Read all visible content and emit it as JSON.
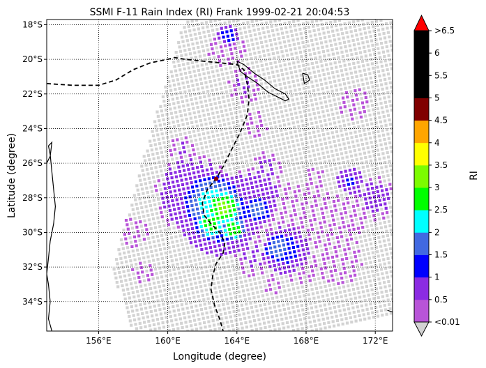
{
  "chart_data": {
    "type": "heatmap",
    "title": "SSMI F-11 Rain Index (RI) Frank 1999-02-21 20:04:53",
    "xlabel": "Longitude (degree)",
    "ylabel": "Latitude (degree)",
    "xlim": [
      153.0,
      173.0
    ],
    "ylim": [
      -35.7,
      -17.7
    ],
    "x_ticks": [
      156,
      160,
      164,
      168,
      172
    ],
    "x_tick_labels": [
      "156°E",
      "160°E",
      "164°E",
      "168°E",
      "172°E"
    ],
    "y_ticks": [
      -18,
      -20,
      -22,
      -24,
      -26,
      -28,
      -30,
      -32,
      -34
    ],
    "y_tick_labels": [
      "18°S",
      "20°S",
      "22°S",
      "24°S",
      "26°S",
      "28°S",
      "30°S",
      "32°S",
      "34°S"
    ],
    "grid": "dotted",
    "colorbar": {
      "label": "RI",
      "tick_labels": [
        "<0.01",
        "0.5",
        "1",
        "1.5",
        "2",
        "2.5",
        "3",
        "3.5",
        "4",
        "4.5",
        "5",
        "5.5",
        "6",
        ">6.5"
      ],
      "colors": [
        "#b854d8",
        "#8b2be2",
        "#0000ff",
        "#4169e1",
        "#00ffff",
        "#00ff00",
        "#7cfc00",
        "#ffff00",
        "#ffa500",
        "#800000",
        "#000000",
        "#000000",
        "#000000"
      ],
      "under_color": "#d3d3d3",
      "over_color": "#ff0000"
    },
    "rain_cells": [
      {
        "lon": 163.2,
        "lat": -28.6,
        "ri": 3.2,
        "r": 1.1
      },
      {
        "lon": 162.5,
        "lat": -29.5,
        "ri": 2.8,
        "r": 0.9
      },
      {
        "lon": 163.8,
        "lat": -29.8,
        "ri": 3.0,
        "r": 0.7
      },
      {
        "lon": 162.6,
        "lat": -28.3,
        "ri": 2.3,
        "r": 1.6
      },
      {
        "lon": 163.0,
        "lat": -29.0,
        "ri": 1.3,
        "r": 2.4
      },
      {
        "lon": 161.5,
        "lat": -27.8,
        "ri": 0.9,
        "r": 2.3
      },
      {
        "lon": 165.2,
        "lat": -28.7,
        "ri": 1.8,
        "r": 0.8
      },
      {
        "lon": 165.0,
        "lat": -27.8,
        "ri": 0.8,
        "r": 1.7
      },
      {
        "lon": 166.4,
        "lat": -30.9,
        "ri": 1.9,
        "r": 0.8
      },
      {
        "lon": 166.8,
        "lat": -31.0,
        "ri": 1.2,
        "r": 1.4
      },
      {
        "lon": 167.0,
        "lat": -29.4,
        "ri": 0.4,
        "r": 2.2
      },
      {
        "lon": 169.5,
        "lat": -29.5,
        "ri": 0.4,
        "r": 1.8
      },
      {
        "lon": 170.6,
        "lat": -27.0,
        "ri": 1.1,
        "r": 0.8
      },
      {
        "lon": 172.0,
        "lat": -28.0,
        "ri": 0.7,
        "r": 1.3
      },
      {
        "lon": 165.0,
        "lat": -31.4,
        "ri": 0.6,
        "r": 1.2
      },
      {
        "lon": 167.8,
        "lat": -32.0,
        "ri": 0.4,
        "r": 1.0
      },
      {
        "lon": 170.0,
        "lat": -31.8,
        "ri": 0.3,
        "r": 1.3
      },
      {
        "lon": 163.5,
        "lat": -18.6,
        "ri": 1.4,
        "r": 0.6
      },
      {
        "lon": 163.4,
        "lat": -19.4,
        "ri": 0.5,
        "r": 1.1
      },
      {
        "lon": 164.5,
        "lat": -21.5,
        "ri": 0.6,
        "r": 1.0
      },
      {
        "lon": 165.1,
        "lat": -23.8,
        "ri": 0.5,
        "r": 0.8
      },
      {
        "lon": 170.8,
        "lat": -22.6,
        "ri": 0.5,
        "r": 0.9
      },
      {
        "lon": 165.8,
        "lat": -26.2,
        "ri": 0.6,
        "r": 0.9
      },
      {
        "lon": 158.0,
        "lat": -30.0,
        "ri": 0.4,
        "r": 0.9
      },
      {
        "lon": 158.5,
        "lat": -32.3,
        "ri": 0.3,
        "r": 0.7
      },
      {
        "lon": 160.9,
        "lat": -25.2,
        "ri": 0.6,
        "r": 0.8
      },
      {
        "lon": 166.0,
        "lat": -33.0,
        "ri": 0.3,
        "r": 0.6
      },
      {
        "lon": 168.5,
        "lat": -27.0,
        "ri": 0.3,
        "r": 0.7
      }
    ],
    "storm_center": {
      "lon": 162.8,
      "lat": -26.9
    },
    "storm_track": [
      {
        "lon": 153.0,
        "lat": -21.4
      },
      {
        "lon": 154.5,
        "lat": -21.5
      },
      {
        "lon": 156.0,
        "lat": -21.5
      },
      {
        "lon": 157.0,
        "lat": -21.2
      },
      {
        "lon": 158.0,
        "lat": -20.6
      },
      {
        "lon": 159.0,
        "lat": -20.2
      },
      {
        "lon": 160.0,
        "lat": -20.0
      },
      {
        "lon": 160.4,
        "lat": -19.9
      },
      {
        "lon": 161.0,
        "lat": -20.0
      },
      {
        "lon": 162.0,
        "lat": -20.1
      },
      {
        "lon": 163.0,
        "lat": -20.2
      },
      {
        "lon": 164.0,
        "lat": -20.3
      },
      {
        "lon": 164.4,
        "lat": -20.6
      },
      {
        "lon": 164.6,
        "lat": -21.4
      },
      {
        "lon": 164.7,
        "lat": -22.3
      },
      {
        "lon": 164.6,
        "lat": -23.2
      },
      {
        "lon": 164.2,
        "lat": -24.2
      },
      {
        "lon": 163.7,
        "lat": -25.2
      },
      {
        "lon": 163.2,
        "lat": -26.2
      },
      {
        "lon": 162.8,
        "lat": -26.9
      },
      {
        "lon": 162.3,
        "lat": -27.5
      },
      {
        "lon": 162.0,
        "lat": -28.3
      },
      {
        "lon": 162.1,
        "lat": -29.0
      },
      {
        "lon": 162.5,
        "lat": -29.5
      },
      {
        "lon": 163.0,
        "lat": -30.0
      },
      {
        "lon": 163.3,
        "lat": -30.6
      },
      {
        "lon": 163.2,
        "lat": -31.2
      },
      {
        "lon": 162.8,
        "lat": -31.8
      },
      {
        "lon": 162.6,
        "lat": -32.5
      },
      {
        "lon": 162.5,
        "lat": -33.3
      },
      {
        "lon": 162.7,
        "lat": -34.2
      },
      {
        "lon": 163.0,
        "lat": -35.0
      },
      {
        "lon": 163.2,
        "lat": -35.7
      }
    ],
    "coastlines": [
      [
        {
          "lon": 153.3,
          "lat": -35.7
        },
        {
          "lon": 153.1,
          "lat": -35.0
        },
        {
          "lon": 153.2,
          "lat": -34.0
        },
        {
          "lon": 153.1,
          "lat": -33.0
        },
        {
          "lon": 153.0,
          "lat": -32.4
        },
        {
          "lon": 153.1,
          "lat": -31.5
        },
        {
          "lon": 153.2,
          "lat": -30.5
        },
        {
          "lon": 153.4,
          "lat": -29.5
        },
        {
          "lon": 153.5,
          "lat": -28.5
        },
        {
          "lon": 153.4,
          "lat": -27.5
        },
        {
          "lon": 153.3,
          "lat": -26.5
        },
        {
          "lon": 153.2,
          "lat": -25.5
        },
        {
          "lon": 153.1,
          "lat": -25.0
        },
        {
          "lon": 153.3,
          "lat": -24.8
        },
        {
          "lon": 153.2,
          "lat": -25.6
        },
        {
          "lon": 153.0,
          "lat": -26.0
        }
      ],
      [
        {
          "lon": 164.0,
          "lat": -20.1
        },
        {
          "lon": 164.4,
          "lat": -20.3
        },
        {
          "lon": 165.0,
          "lat": -20.8
        },
        {
          "lon": 165.6,
          "lat": -21.2
        },
        {
          "lon": 166.2,
          "lat": -21.7
        },
        {
          "lon": 166.8,
          "lat": -22.0
        },
        {
          "lon": 167.0,
          "lat": -22.3
        },
        {
          "lon": 166.8,
          "lat": -22.4
        },
        {
          "lon": 166.4,
          "lat": -22.2
        },
        {
          "lon": 165.8,
          "lat": -21.9
        },
        {
          "lon": 165.2,
          "lat": -21.4
        },
        {
          "lon": 164.6,
          "lat": -21.0
        },
        {
          "lon": 164.2,
          "lat": -20.7
        },
        {
          "lon": 164.0,
          "lat": -20.1
        }
      ],
      [
        {
          "lon": 167.8,
          "lat": -20.8
        },
        {
          "lon": 168.1,
          "lat": -20.9
        },
        {
          "lon": 168.2,
          "lat": -21.2
        },
        {
          "lon": 167.9,
          "lat": -21.4
        },
        {
          "lon": 167.8,
          "lat": -20.8
        }
      ],
      [
        {
          "lon": 172.7,
          "lat": -34.5
        },
        {
          "lon": 173.0,
          "lat": -34.6
        }
      ]
    ],
    "swath": [
      {
        "lon": 161.0,
        "lat": -17.7
      },
      {
        "lon": 173.0,
        "lat": -17.7
      },
      {
        "lon": 173.0,
        "lat": -34.7
      },
      {
        "lon": 169.5,
        "lat": -35.7
      },
      {
        "lon": 158.0,
        "lat": -35.7
      },
      {
        "lon": 156.8,
        "lat": -32.2
      },
      {
        "lon": 158.5,
        "lat": -26.0
      },
      {
        "lon": 160.0,
        "lat": -21.0
      }
    ]
  }
}
